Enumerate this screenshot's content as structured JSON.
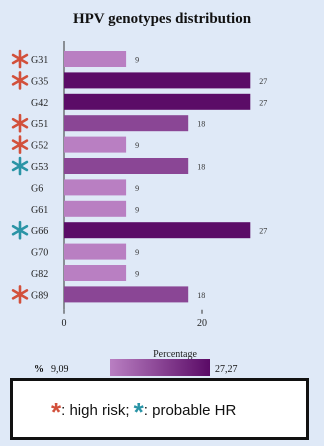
{
  "chart_data": {
    "type": "bar",
    "orientation": "horizontal",
    "title": "HPV genotypes distribution",
    "xlabel": "Percentage",
    "categories": [
      "G31",
      "G35",
      "G42",
      "G51",
      "G52",
      "G53",
      "G6",
      "G61",
      "G66",
      "G70",
      "G82",
      "G89"
    ],
    "values": [
      9,
      27,
      27,
      18,
      9,
      18,
      9,
      9,
      27,
      9,
      9,
      18
    ],
    "data_labels": [
      "9",
      "27",
      "27",
      "18",
      "9",
      "18",
      "9",
      "9",
      "27",
      "9",
      "9",
      "18"
    ],
    "risk": [
      "high",
      "high",
      "none",
      "high",
      "high",
      "probable",
      "none",
      "none",
      "probable",
      "none",
      "none",
      "high"
    ],
    "xticks": [
      "0",
      "20"
    ],
    "xlim": [
      0,
      30
    ],
    "colorbar": {
      "label_prefix": "%",
      "min_label": "9,09",
      "max_label": "27,27",
      "min": 9.09,
      "max": 27.27
    },
    "colors": {
      "low": "#b97fc2",
      "high": "#5a0a66"
    }
  },
  "legend": {
    "high_risk_star": "*",
    "high_risk_text": ": high risk;",
    "probable_star": "*",
    "probable_text": ": probable HR",
    "colors": {
      "high": "#d2503b",
      "probable": "#2a94a6"
    }
  }
}
